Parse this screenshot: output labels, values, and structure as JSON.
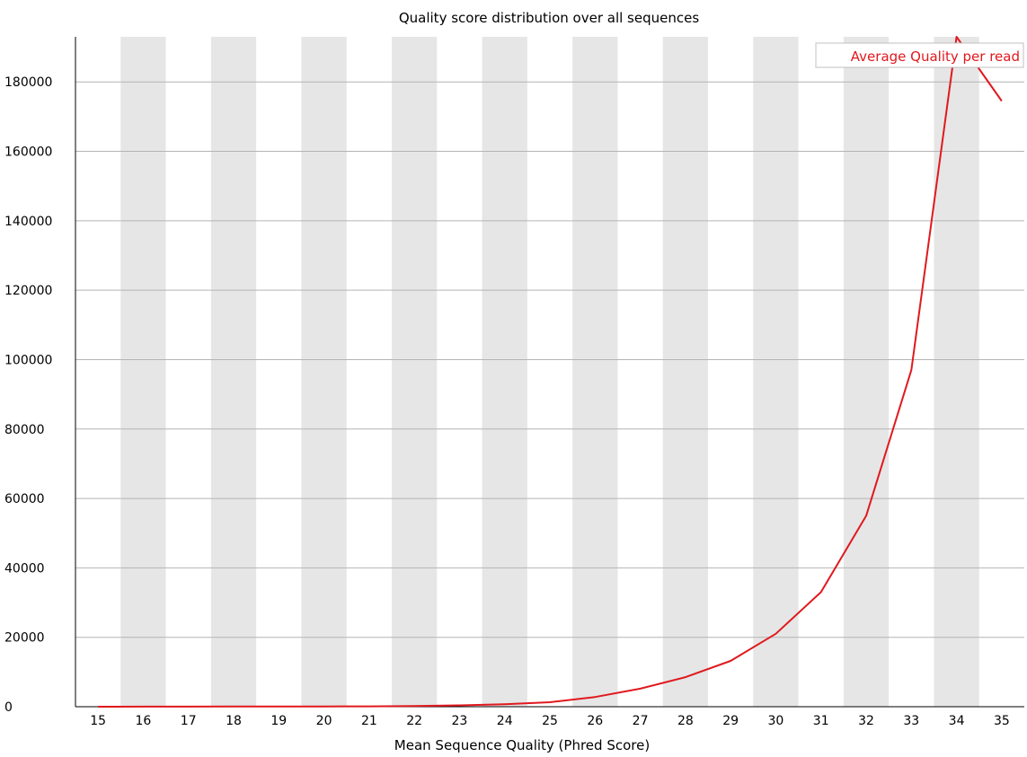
{
  "chart_data": {
    "type": "line",
    "title": "Quality score distribution over all sequences",
    "xlabel": "Mean Sequence Quality (Phred Score)",
    "ylabel": "",
    "x": [
      15,
      16,
      17,
      18,
      19,
      20,
      21,
      22,
      23,
      24,
      25,
      26,
      27,
      28,
      29,
      30,
      31,
      32,
      33,
      34,
      35
    ],
    "x_tick_labels": [
      "15",
      "16",
      "17",
      "18",
      "19",
      "20",
      "21",
      "22",
      "23",
      "24",
      "25",
      "26",
      "27",
      "28",
      "29",
      "30",
      "31",
      "32",
      "33",
      "34",
      "35"
    ],
    "y_tick_labels": [
      "0",
      "20000",
      "40000",
      "60000",
      "80000",
      "100000",
      "120000",
      "140000",
      "160000",
      "180000"
    ],
    "y_ticks": [
      0,
      20000,
      40000,
      60000,
      80000,
      100000,
      120000,
      140000,
      160000,
      180000
    ],
    "ylim": [
      0,
      193000
    ],
    "xlim": [
      14.5,
      35.5
    ],
    "grid": true,
    "alternating_column_shading": true,
    "legend_position": "top-right",
    "series": [
      {
        "name": "Average Quality per read",
        "color": "#e0191e",
        "values": [
          10,
          20,
          30,
          40,
          60,
          80,
          100,
          200,
          400,
          700,
          1300,
          2800,
          5200,
          8500,
          13200,
          21000,
          33000,
          55000,
          97000,
          193000,
          174500
        ]
      }
    ],
    "colors": {
      "band": "#e6e6e6",
      "grid": "#b4b4b4",
      "axis": "#000000",
      "legend_border": "#c0c0c0"
    }
  }
}
